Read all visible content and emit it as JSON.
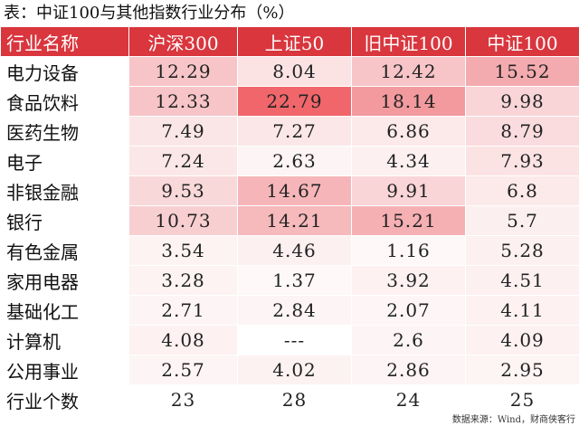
{
  "title": "表：中证100与其他指数行业分布（%）",
  "table": {
    "headers": [
      "行业名称",
      "沪深300",
      "上证50",
      "旧中证100",
      "中证100"
    ],
    "rows": [
      {
        "name": "电力设备",
        "values": [
          "12.29",
          "8.04",
          "12.42",
          "15.52"
        ],
        "colors": [
          "#f7c5c8",
          "#fbe3e4",
          "#f7c4c7",
          "#f4abaf"
        ]
      },
      {
        "name": "食品饮料",
        "values": [
          "12.33",
          "22.79",
          "18.14",
          "9.98"
        ],
        "colors": [
          "#f7c5c8",
          "#f0666b",
          "#f29a9e",
          "#f9d5d7"
        ]
      },
      {
        "name": "医药生物",
        "values": [
          "7.49",
          "7.27",
          "6.86",
          "8.79"
        ],
        "colors": [
          "#fbe6e7",
          "#fbe7e8",
          "#fce9ea",
          "#fadcde"
        ]
      },
      {
        "name": "电子",
        "values": [
          "7.24",
          "2.63",
          "4.34",
          "7.93"
        ],
        "colors": [
          "#fbe7e8",
          "#fdf5f5",
          "#fcf0f1",
          "#fbe3e4"
        ]
      },
      {
        "name": "非银金融",
        "values": [
          "9.53",
          "14.67",
          "9.91",
          "6.8"
        ],
        "colors": [
          "#f9d8da",
          "#f6b6b9",
          "#f9d5d7",
          "#fce9ea"
        ]
      },
      {
        "name": "银行",
        "values": [
          "10.73",
          "14.21",
          "15.21",
          "5.7"
        ],
        "colors": [
          "#f8cfd1",
          "#f6b9bc",
          "#f5b0b3",
          "#fcefef"
        ]
      },
      {
        "name": "有色金属",
        "values": [
          "3.54",
          "4.46",
          "1.16",
          "5.28"
        ],
        "colors": [
          "#fdf3f3",
          "#fcf0f1",
          "#fef8f8",
          "#fcf0f0"
        ]
      },
      {
        "name": "家用电器",
        "values": [
          "3.28",
          "1.37",
          "3.92",
          "4.51"
        ],
        "colors": [
          "#fdf3f3",
          "#fef8f8",
          "#fdf1f2",
          "#fcf0f1"
        ]
      },
      {
        "name": "基础化工",
        "values": [
          "2.71",
          "2.84",
          "2.07",
          "4.11"
        ],
        "colors": [
          "#fdf5f5",
          "#fdf4f5",
          "#fef6f6",
          "#fdf1f2"
        ]
      },
      {
        "name": "计算机",
        "values": [
          "4.08",
          "---",
          "2.6",
          "4.09"
        ],
        "colors": [
          "#fdf1f2",
          "#ffffff",
          "#fdf5f5",
          "#fdf1f2"
        ]
      },
      {
        "name": "公用事业",
        "values": [
          "2.57",
          "4.02",
          "2.86",
          "2.95"
        ],
        "colors": [
          "#fdf5f5",
          "#fdf2f2",
          "#fdf4f5",
          "#fdf4f4"
        ]
      }
    ],
    "count_row": {
      "name": "行业个数",
      "values": [
        "23",
        "28",
        "24",
        "25"
      ]
    }
  },
  "source": "数据来源：Wind，财商侠客行",
  "colors": {
    "header_bg": "#d9363e",
    "header_text": "#ffffff"
  }
}
